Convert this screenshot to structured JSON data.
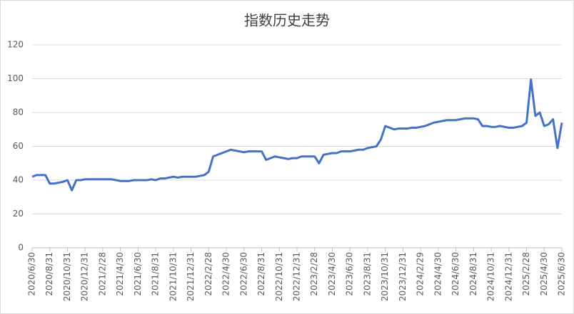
{
  "chart_data": {
    "type": "line",
    "title": "指数历史走势",
    "categories": [
      "2020/6/30",
      null,
      null,
      null,
      "2020/8/31",
      null,
      null,
      null,
      "2020/10/31",
      null,
      null,
      null,
      "2020/12/31",
      null,
      null,
      null,
      "2021/2/28",
      null,
      null,
      null,
      "2021/4/30",
      null,
      null,
      null,
      "2021/6/30",
      null,
      null,
      null,
      "2021/8/31",
      null,
      null,
      null,
      "2021/10/31",
      null,
      null,
      null,
      "2021/12/31",
      null,
      null,
      null,
      "2022/2/28",
      null,
      null,
      null,
      "2022/4/30",
      null,
      null,
      null,
      "2022/6/30",
      null,
      null,
      null,
      "2022/8/31",
      null,
      null,
      null,
      "2022/10/31",
      null,
      null,
      null,
      "2022/12/31",
      null,
      null,
      null,
      "2023/2/28",
      null,
      null,
      null,
      "2023/4/30",
      null,
      null,
      null,
      "2023/6/30",
      null,
      null,
      null,
      "2023/8/31",
      null,
      null,
      null,
      "2023/10/31",
      null,
      null,
      null,
      "2023/12/31",
      null,
      null,
      null,
      "2024/2/29",
      null,
      null,
      null,
      "2024/4/30",
      null,
      null,
      null,
      "2024/6/30",
      null,
      null,
      null,
      "2024/8/31",
      null,
      null,
      null,
      "2024/10/31",
      null,
      null,
      null,
      "2024/12/31",
      null,
      null,
      null,
      "2025/2/28",
      null,
      null,
      null,
      "2025/4/30",
      null,
      null,
      null,
      "2025/6/30"
    ],
    "values": [
      42,
      43,
      43,
      43,
      38,
      38,
      38.5,
      39,
      40,
      34,
      40,
      40,
      40.5,
      40.5,
      40.5,
      40.5,
      40.5,
      40.5,
      40.5,
      40,
      39.5,
      39.5,
      39.5,
      40,
      40,
      40,
      40,
      40.5,
      40,
      41,
      41,
      41.5,
      42,
      41.5,
      42,
      42,
      42,
      42,
      42.5,
      43,
      45,
      54,
      55,
      56,
      57,
      58,
      57.5,
      57,
      56.5,
      57,
      57,
      57,
      57,
      52,
      53,
      54,
      53.5,
      53,
      52.5,
      53,
      53,
      54,
      54,
      54,
      54,
      50,
      55,
      55.5,
      56,
      56,
      57,
      57,
      57,
      57.5,
      58,
      58,
      59,
      59.5,
      60,
      64,
      72,
      71,
      70,
      70.5,
      70.5,
      70.5,
      71,
      71,
      71.5,
      72,
      73,
      74,
      74.5,
      75,
      75.5,
      75.5,
      75.5,
      76,
      76.5,
      76.5,
      76.5,
      76,
      72,
      72,
      71.5,
      71.5,
      72,
      71.5,
      71,
      71,
      71.5,
      72,
      74,
      99.5,
      78,
      80,
      72,
      73,
      76,
      59,
      74
    ],
    "color": "#4472c4",
    "ylim": [
      0,
      120
    ],
    "yticks": [
      0,
      20,
      40,
      60,
      80,
      100,
      120
    ],
    "grid": true
  }
}
